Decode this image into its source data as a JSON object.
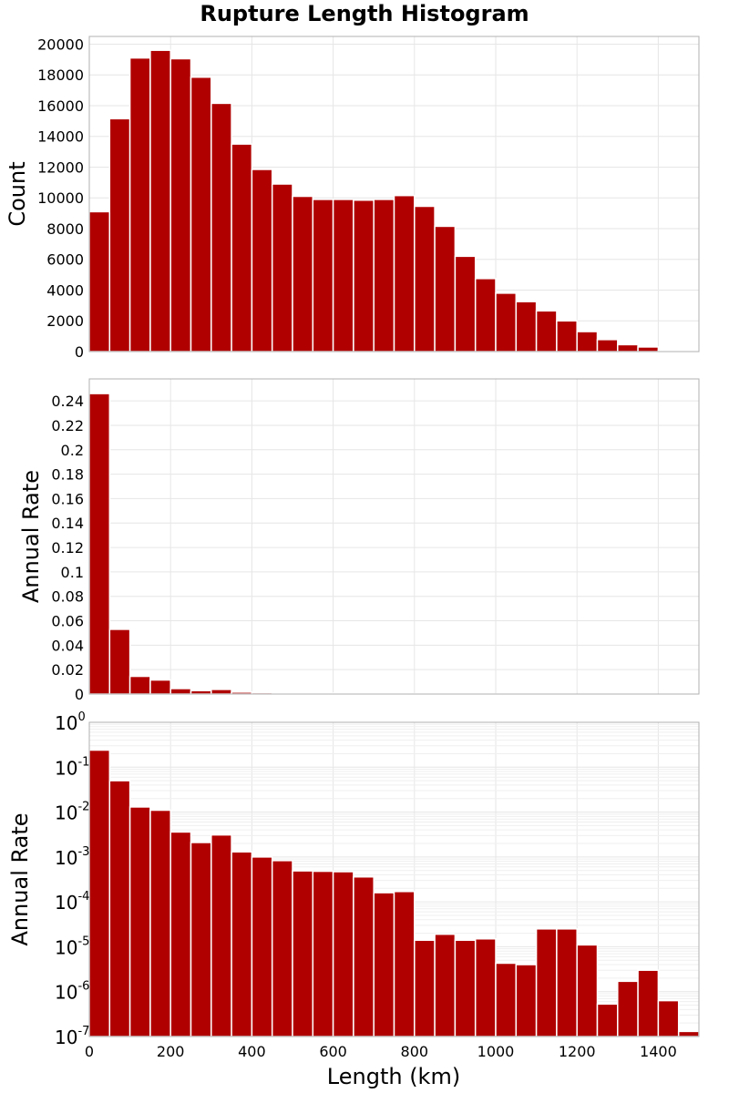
{
  "chart_data": {
    "type": "bar",
    "title": "Rupture Length Histogram",
    "bar_color": "#b00000",
    "xlabel": "Length (km)",
    "xlim": [
      0,
      1500
    ],
    "xticks": [
      0,
      200,
      400,
      600,
      800,
      1000,
      1200,
      1400
    ],
    "bin_width": 50,
    "bin_starts": [
      0,
      50,
      100,
      150,
      200,
      250,
      300,
      350,
      400,
      450,
      500,
      550,
      600,
      650,
      700,
      750,
      800,
      850,
      900,
      950,
      1000,
      1050,
      1100,
      1150,
      1200,
      1250,
      1300,
      1350,
      1400,
      1450
    ],
    "panels": [
      {
        "ylabel": "Count",
        "scale": "linear",
        "ylim": [
          0,
          20500
        ],
        "yticks": [
          0,
          2000,
          4000,
          6000,
          8000,
          10000,
          12000,
          14000,
          16000,
          18000,
          20000
        ],
        "ytick_labels": [
          "0",
          "2000",
          "4000",
          "6000",
          "8000",
          "10000",
          "12000",
          "14000",
          "16000",
          "18000",
          "20000"
        ],
        "values": [
          9100,
          15150,
          19100,
          19600,
          19050,
          17850,
          16150,
          13500,
          11850,
          10900,
          10100,
          9900,
          9900,
          9850,
          9900,
          10150,
          9450,
          8150,
          6200,
          4750,
          3800,
          3250,
          2650,
          2000,
          1300,
          780,
          450,
          300,
          80,
          20
        ]
      },
      {
        "ylabel": "Annual Rate",
        "scale": "linear",
        "ylim": [
          0,
          0.258
        ],
        "yticks": [
          0,
          0.02,
          0.04,
          0.06,
          0.08,
          0.1,
          0.12,
          0.14,
          0.16,
          0.18,
          0.2,
          0.22,
          0.24
        ],
        "ytick_labels": [
          "0",
          "0.02",
          "0.04",
          "0.06",
          "0.08",
          "0.1",
          "0.12",
          "0.14",
          "0.16",
          "0.18",
          "0.2",
          "0.22",
          "0.24"
        ],
        "values": [
          0.246,
          0.053,
          0.0145,
          0.0115,
          0.0045,
          0.0028,
          0.0038,
          0.0016,
          0.0012,
          0.00095,
          0.0006,
          0.0006,
          0.0006,
          0.00045,
          0.00025,
          0.00025,
          2e-05,
          2e-05,
          2e-05,
          2e-05,
          0,
          0,
          0,
          0,
          0,
          0,
          0,
          0,
          0,
          0
        ]
      },
      {
        "ylabel": "Annual Rate",
        "scale": "log",
        "ylim": [
          1e-07,
          1
        ],
        "yticks": [
          1e-07,
          1e-06,
          1e-05,
          0.0001,
          0.001,
          0.01,
          0.1,
          1
        ],
        "ytick_base": "10",
        "ytick_exponents": [
          "-7",
          "-6",
          "-5",
          "-4",
          "-3",
          "-2",
          "-1",
          "0"
        ],
        "values": [
          0.24,
          0.05,
          0.013,
          0.011,
          0.0036,
          0.0021,
          0.0031,
          0.0013,
          0.001,
          0.00083,
          0.00049,
          0.00048,
          0.00047,
          0.00036,
          0.00016,
          0.00017,
          1.4e-05,
          1.9e-05,
          1.4e-05,
          1.5e-05,
          4.3e-06,
          4e-06,
          2.5e-05,
          2.5e-05,
          1.1e-05,
          5.3e-07,
          1.7e-06,
          3e-06,
          6.3e-07,
          1.3e-07
        ]
      }
    ]
  }
}
